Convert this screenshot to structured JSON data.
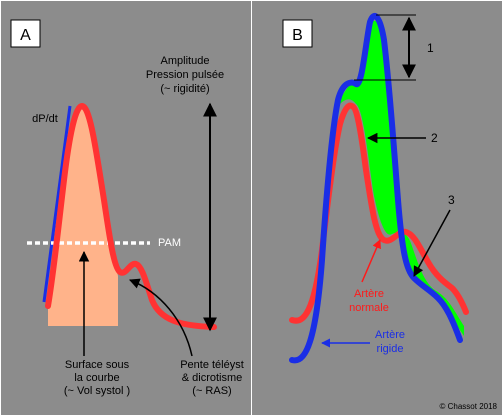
{
  "panel_a": {
    "label": "A",
    "dpdt": "dP/dt",
    "pam": "PAM",
    "amplitude": [
      "Amplitude",
      "Pression pulsée",
      "(~ rigidité)"
    ],
    "surface": [
      "Surface sous",
      "la courbe",
      "(~ Vol systol )"
    ],
    "pente": [
      "Pente téléyst",
      "& dicrotisme",
      "(~ RAS)"
    ]
  },
  "panel_b": {
    "label": "B",
    "marker_1": "1",
    "marker_2": "2",
    "marker_3": "3",
    "normal": [
      "Artère",
      "normale"
    ],
    "rigide": [
      "Artère",
      "rigide"
    ]
  },
  "copyright": "© Chassot 2018",
  "colors": {
    "panel_bg": "#8c8c8c",
    "pressure_curve": "#ff3333",
    "stiff_curve": "#1a2ee6",
    "area_fill": "#ffb38a",
    "difference_fill": "#00ff00",
    "normal_label": "#ff1a1a",
    "rigid_label": "#1a2ee6"
  }
}
